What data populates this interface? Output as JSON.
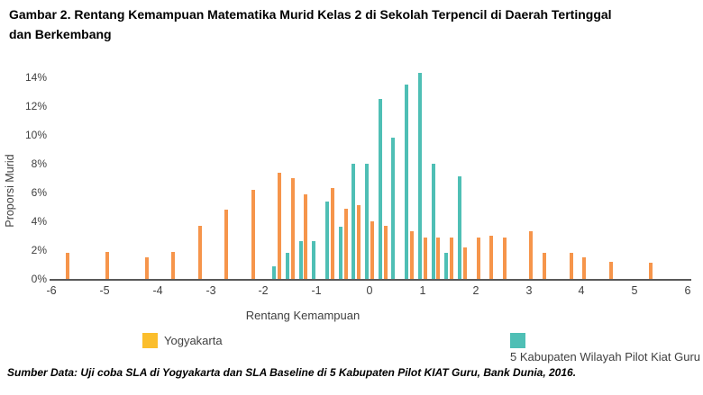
{
  "figure": {
    "title_line1": "Gambar 2. Rentang Kemampuan Matematika Murid Kelas 2 di Sekolah Terpencil di Daerah Tertinggal",
    "title_line2": "dan Berkembang",
    "source_note": "Sumber Data: Uji coba SLA di Yogyakarta dan SLA Baseline di 5 Kabupaten Pilot KIAT Guru, Bank Dunia, 2016."
  },
  "legend": [
    {
      "label": "Yogyakarta",
      "swatch_color": "#FBBE2C"
    },
    {
      "label": "5 Kabupaten Wilayah Pilot Kiat Guru",
      "swatch_color": "#4FBFB5"
    }
  ],
  "colors": {
    "yogyakarta_bar": "#F6954B",
    "kabupaten_bar": "#4FBFB5",
    "axis_line": "#595959",
    "tick_text": "#404040"
  },
  "chart_data": {
    "type": "bar",
    "title": "Gambar 2. Rentang Kemampuan Matematika Murid Kelas 2 di Sekolah Terpencil di Daerah Tertinggal dan Berkembang",
    "xlabel": "Rentang Kemampuan",
    "ylabel": "Proporsi Murid",
    "xlim": [
      -6,
      6
    ],
    "ylim": [
      0,
      14
    ],
    "x_ticks": [
      "-6",
      "-5",
      "-4",
      "-3",
      "-2",
      "-1",
      "0",
      "1",
      "2",
      "3",
      "4",
      "5",
      "6"
    ],
    "y_ticks": [
      "0%",
      "2%",
      "4%",
      "6%",
      "8%",
      "10%",
      "12%",
      "14%"
    ],
    "grid": false,
    "legend_position": "bottom",
    "value_unit": "percent of students",
    "series": [
      {
        "name": "Yogyakarta",
        "color": "#F6954B",
        "points": [
          [
            -5.7,
            1.8
          ],
          [
            -4.95,
            1.9
          ],
          [
            -4.2,
            1.5
          ],
          [
            -3.7,
            1.9
          ],
          [
            -3.2,
            3.7
          ],
          [
            -2.7,
            4.8
          ],
          [
            -2.2,
            6.2
          ],
          [
            -1.7,
            7.4
          ],
          [
            -1.45,
            7.0
          ],
          [
            -1.2,
            5.9
          ],
          [
            -0.7,
            6.3
          ],
          [
            -0.45,
            4.9
          ],
          [
            -0.2,
            5.1
          ],
          [
            0.05,
            4.0
          ],
          [
            0.3,
            3.7
          ],
          [
            0.8,
            3.3
          ],
          [
            1.05,
            2.9
          ],
          [
            1.3,
            2.9
          ],
          [
            1.55,
            2.9
          ],
          [
            1.8,
            2.2
          ],
          [
            2.05,
            2.9
          ],
          [
            2.3,
            3.0
          ],
          [
            2.55,
            2.9
          ],
          [
            3.05,
            3.3
          ],
          [
            3.3,
            1.8
          ],
          [
            3.8,
            1.8
          ],
          [
            4.05,
            1.5
          ],
          [
            4.55,
            1.2
          ],
          [
            5.3,
            1.1
          ]
        ]
      },
      {
        "name": "5 Kabupaten Wilayah Pilot Kiat Guru",
        "color": "#4FBFB5",
        "points": [
          [
            -1.8,
            0.9
          ],
          [
            -1.55,
            1.8
          ],
          [
            -1.3,
            2.6
          ],
          [
            -1.05,
            2.6
          ],
          [
            -0.8,
            5.4
          ],
          [
            -0.55,
            3.6
          ],
          [
            -0.3,
            8.0
          ],
          [
            -0.05,
            8.0
          ],
          [
            0.2,
            12.5
          ],
          [
            0.45,
            9.8
          ],
          [
            0.7,
            13.5
          ],
          [
            0.95,
            14.3
          ],
          [
            1.2,
            8.0
          ],
          [
            1.45,
            1.8
          ],
          [
            1.7,
            7.1
          ]
        ]
      }
    ]
  }
}
